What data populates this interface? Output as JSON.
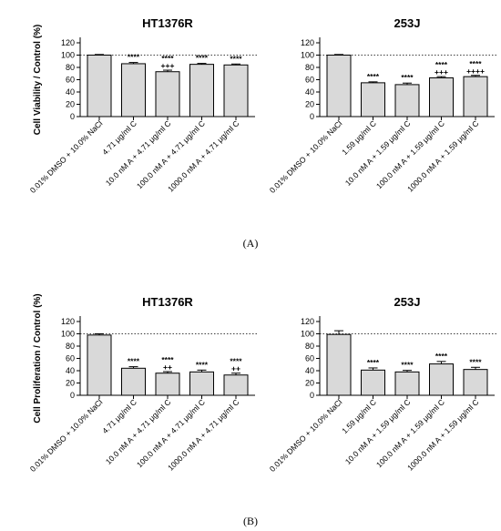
{
  "panel_labels": [
    "(A)",
    "(B)"
  ],
  "chart_data": [
    {
      "type": "bar",
      "panel": "A",
      "title": "HT1376R",
      "ylabel": "Cell Viability / Control (%)",
      "ylim": [
        0,
        120
      ],
      "yticks": [
        0,
        20,
        40,
        60,
        80,
        100,
        120
      ],
      "reference_line": 100,
      "categories": [
        "0.01% DMSO + 10.0% NaCl",
        "4.71 μg/ml C",
        "10.0 nM A + 4.71 μg/ml C",
        "100.0 nM A + 4.71 μg/ml C",
        "1000.0 nM A + 4.71 μg/ml C"
      ],
      "values": [
        100,
        86,
        73,
        85,
        84
      ],
      "errors": [
        1,
        2,
        2.5,
        1.5,
        1.5
      ],
      "annotations": [
        [
          "",
          ""
        ],
        [
          "****",
          ""
        ],
        [
          "****",
          "+++"
        ],
        [
          "****",
          ""
        ],
        [
          "****",
          ""
        ]
      ]
    },
    {
      "type": "bar",
      "panel": "A",
      "title": "253J",
      "ylabel": "",
      "ylim": [
        0,
        120
      ],
      "yticks": [
        0,
        20,
        40,
        60,
        80,
        100,
        120
      ],
      "reference_line": 100,
      "categories": [
        "0.01% DMSO + 10.0% NaCl",
        "1.59 μg/ml C",
        "10.0 nM A + 1.59 μg/ml C",
        "100.0 nM A + 1.59 μg/ml C",
        "1000.0 nM A + 1.59 μg/ml C"
      ],
      "values": [
        100,
        55,
        52,
        63,
        65
      ],
      "errors": [
        1,
        1.5,
        2.5,
        2,
        2
      ],
      "annotations": [
        [
          "",
          ""
        ],
        [
          "****",
          ""
        ],
        [
          "****",
          ""
        ],
        [
          "****",
          "+++"
        ],
        [
          "****",
          "++++"
        ]
      ]
    },
    {
      "type": "bar",
      "panel": "B",
      "title": "HT1376R",
      "ylabel": "Cell Proliferation / Control (%)",
      "ylim": [
        0,
        120
      ],
      "yticks": [
        0,
        20,
        40,
        60,
        80,
        100,
        120
      ],
      "reference_line": 100,
      "categories": [
        "0.01% DMSO + 10.0% NaCl",
        "4.71 μg/ml C",
        "10.0 nM A + 4.71 μg/ml C",
        "100.0 nM A + 4.71 μg/ml C",
        "1000.0 nM A + 4.71 μg/ml C"
      ],
      "values": [
        98,
        44,
        36,
        38,
        33
      ],
      "errors": [
        2,
        2.5,
        2.5,
        3,
        3
      ],
      "annotations": [
        [
          "",
          ""
        ],
        [
          "****",
          ""
        ],
        [
          "****",
          "++"
        ],
        [
          "****",
          ""
        ],
        [
          "****",
          "++"
        ]
      ]
    },
    {
      "type": "bar",
      "panel": "B",
      "title": "253J",
      "ylabel": "",
      "ylim": [
        0,
        120
      ],
      "yticks": [
        0,
        20,
        40,
        60,
        80,
        100,
        120
      ],
      "reference_line": 100,
      "categories": [
        "0.01% DMSO + 10.0% NaCl",
        "1.59 μg/ml C",
        "10.0 nM A + 1.59 μg/ml C",
        "100.0 nM A + 1.59 μg/ml C",
        "1000.0 nM A + 1.59 μg/ml C"
      ],
      "values": [
        99,
        41,
        38,
        51,
        42
      ],
      "errors": [
        6,
        3.5,
        2.5,
        4,
        3.5
      ],
      "annotations": [
        [
          "",
          ""
        ],
        [
          "****",
          ""
        ],
        [
          "****",
          ""
        ],
        [
          "****",
          ""
        ],
        [
          "****",
          ""
        ]
      ]
    }
  ],
  "colors": {
    "bar_fill": "#d9d9d9",
    "bar_stroke": "#000000",
    "axis": "#000000",
    "reference_line": "#000000"
  }
}
